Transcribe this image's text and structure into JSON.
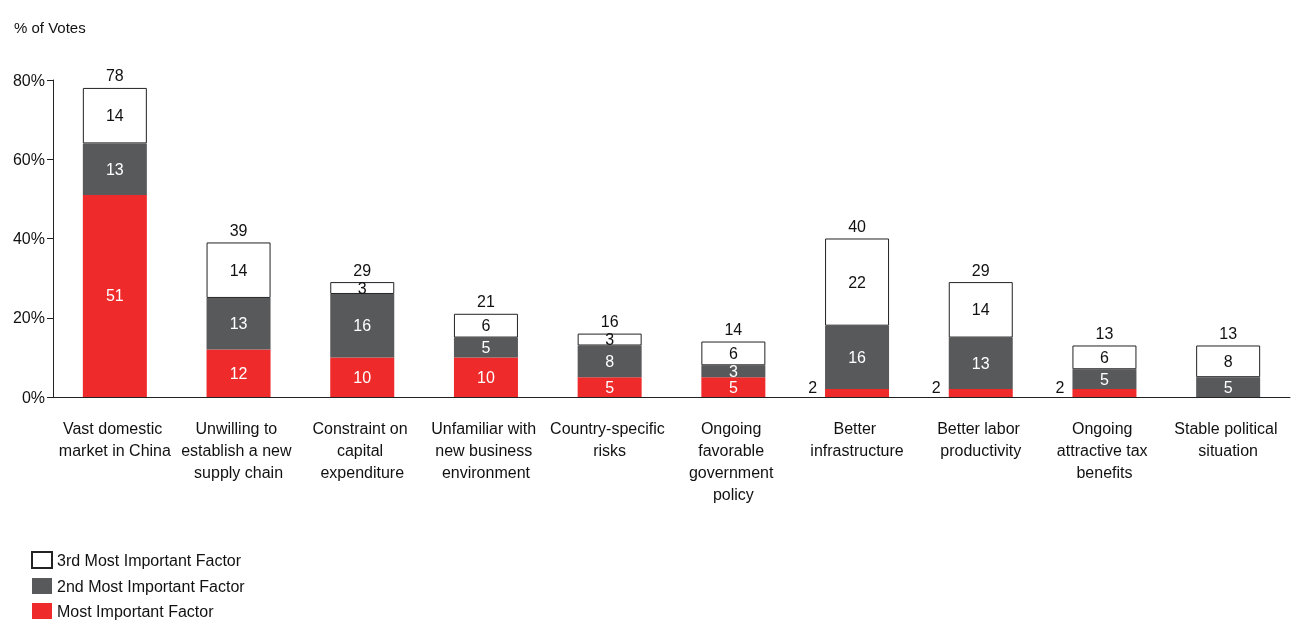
{
  "chart_data": {
    "type": "bar",
    "stacked": true,
    "ylabel": "% of Votes",
    "categories": [
      "Vast domestic market in China",
      "Unwilling to establish a new supply chain",
      "Constraint on capital expenditure",
      "Unfamiliar with new business environment",
      "Country-specific risks",
      "Ongoing favorable government policy",
      "Better infrastructure",
      "Better labor productivity",
      "Ongoing attractive tax benefits",
      "Stable political situation"
    ],
    "series": [
      {
        "name": "Most Important Factor",
        "color": "#ee2a2b",
        "values": [
          51,
          12,
          10,
          10,
          5,
          5,
          2,
          2,
          2,
          null
        ]
      },
      {
        "name": "2nd Most Important Factor",
        "color": "#58595b",
        "values": [
          13,
          13,
          16,
          5,
          8,
          3,
          16,
          13,
          5,
          5
        ]
      },
      {
        "name": "3rd Most Important Factor",
        "color": "#ffffff",
        "values": [
          14,
          14,
          3,
          6,
          3,
          6,
          22,
          14,
          6,
          8
        ]
      }
    ],
    "totals": [
      "78",
      "39",
      "29",
      "21",
      "16",
      "14",
      "40",
      "29",
      "13",
      "13"
    ],
    "data_labels": true,
    "ylim": [
      0,
      80
    ],
    "yticks": [
      {
        "value": 0,
        "label": "0%"
      },
      {
        "value": 20,
        "label": "20%"
      },
      {
        "value": 40,
        "label": "40%"
      },
      {
        "value": 60,
        "label": "60%"
      },
      {
        "value": 80,
        "label": "80%"
      }
    ],
    "grid": false,
    "legend": "bottom left"
  }
}
